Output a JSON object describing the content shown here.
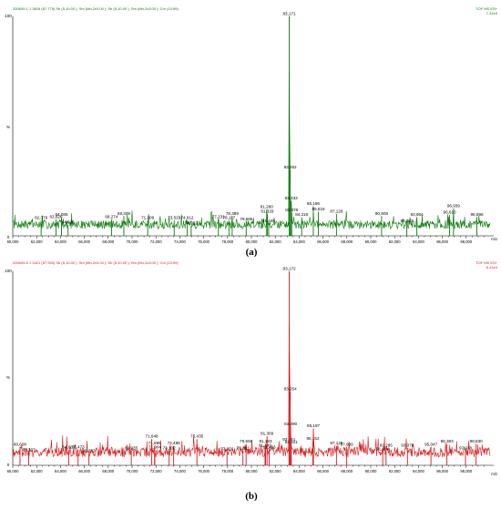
{
  "chart_data": [
    {
      "type": "line",
      "panel_label": "(a)",
      "header_left": "200609-1 1 3616 (67.775) Sb (5,10.00 ); Sm (Mn,2x3.00 ); Sb (5,10.00 ); Sm (Mn,2x3.00 ); Cm (13:99)",
      "header_right": "TOF MS ES+",
      "intensity": "7.31e3",
      "xlabel": "m/z",
      "ylabel": "%",
      "xlim": [
        60000,
        100000
      ],
      "ylim": [
        0,
        100
      ],
      "y_ticks": [
        "100",
        "%",
        "0"
      ],
      "x_ticks": [
        "60,000",
        "62,000",
        "64,000",
        "66,000",
        "68,000",
        "70,000",
        "72,000",
        "74,000",
        "76,000",
        "78,000",
        "80,000",
        "82,000",
        "84,000",
        "86,000",
        "88,000",
        "90,000",
        "92,000",
        "94,000",
        "96,000",
        "98,000"
      ],
      "color": "#0a7a0a",
      "peaks": [
        {
          "x": 62379,
          "y": 7,
          "label": "62,379"
        },
        {
          "x": 63626,
          "y": 7.5,
          "label": "63,626"
        },
        {
          "x": 64085,
          "y": 8.5,
          "label": "64,085"
        },
        {
          "x": 64636,
          "y": 5,
          "label": "64,636"
        },
        {
          "x": 68274,
          "y": 7.5,
          "label": "68,274"
        },
        {
          "x": 69309,
          "y": 9,
          "label": "69,309"
        },
        {
          "x": 71309,
          "y": 7,
          "label": "71,309"
        },
        {
          "x": 73529,
          "y": 7,
          "label": "73,529"
        },
        {
          "x": 74612,
          "y": 7,
          "label": "74,612"
        },
        {
          "x": 74952,
          "y": 4.5,
          "label": "74,952"
        },
        {
          "x": 77231,
          "y": 7.5,
          "label": "77,231"
        },
        {
          "x": 78117,
          "y": 7,
          "label": "78,117"
        },
        {
          "x": 78389,
          "y": 9,
          "label": "78,389"
        },
        {
          "x": 79565,
          "y": 6.5,
          "label": "79,565"
        },
        {
          "x": 81280,
          "y": 12,
          "label": "81,280"
        },
        {
          "x": 81329,
          "y": 10,
          "label": "81,329"
        },
        {
          "x": 81446,
          "y": 5.5,
          "label": "81,446"
        },
        {
          "x": 83171,
          "y": 100,
          "label": "83,171"
        },
        {
          "x": 83252,
          "y": 30,
          "label": "83,252"
        },
        {
          "x": 83333,
          "y": 16,
          "label": "83,333"
        },
        {
          "x": 83376,
          "y": 10.5,
          "label": "83,376"
        },
        {
          "x": 84216,
          "y": 8.5,
          "label": "84,216"
        },
        {
          "x": 85186,
          "y": 13.5,
          "label": "85,186"
        },
        {
          "x": 85616,
          "y": 11,
          "label": "85,616"
        },
        {
          "x": 87128,
          "y": 10,
          "label": "87,128"
        },
        {
          "x": 90909,
          "y": 9,
          "label": "90,909"
        },
        {
          "x": 93023,
          "y": 5.5,
          "label": "93,023"
        },
        {
          "x": 93864,
          "y": 8.5,
          "label": "93,864"
        },
        {
          "x": 96610,
          "y": 9.5,
          "label": "96,610"
        },
        {
          "x": 96939,
          "y": 12.5,
          "label": "96,939"
        },
        {
          "x": 98896,
          "y": 8.5,
          "label": "98,896"
        }
      ]
    },
    {
      "type": "line",
      "panel_label": "(b)",
      "header_left": "200609-5 1 3421 (57.953) Sb (5,10.00 ); Sm (Mn,2x3.00 ); Sb (5,10.00 ); Sm (Mn,2x3.00 ); Cm (13:99)",
      "header_right": "TOF MS ES+",
      "intensity": "6.41e3",
      "xlabel": "m/z",
      "ylabel": "%",
      "xlim": [
        60000,
        100000
      ],
      "ylim": [
        0,
        100
      ],
      "y_ticks": [
        "100",
        "%",
        "0"
      ],
      "x_ticks": [
        "60,000",
        "62,000",
        "64,000",
        "66,000",
        "68,000",
        "70,000",
        "72,000",
        "74,000",
        "76,000",
        "78,000",
        "80,000",
        "82,000",
        "84,000",
        "86,000",
        "88,000",
        "90,000",
        "92,000",
        "94,000",
        "96,000",
        "98,000"
      ],
      "color": "#d81818",
      "peaks": [
        {
          "x": 60608,
          "y": 9.5,
          "label": "60,608"
        },
        {
          "x": 61337,
          "y": 6.5,
          "label": "61,337"
        },
        {
          "x": 64687,
          "y": 8,
          "label": "64,687"
        },
        {
          "x": 65473,
          "y": 8,
          "label": "65,473"
        },
        {
          "x": 66383,
          "y": 6,
          "label": "66,383"
        },
        {
          "x": 69935,
          "y": 7.5,
          "label": "69,935"
        },
        {
          "x": 71885,
          "y": 10,
          "label": "71,885"
        },
        {
          "x": 71904,
          "y": 8,
          "label": "71,904"
        },
        {
          "x": 71648,
          "y": 13.5,
          "label": "71,648"
        },
        {
          "x": 73486,
          "y": 10,
          "label": "73,486"
        },
        {
          "x": 73102,
          "y": 7.5,
          "label": "73,102"
        },
        {
          "x": 75435,
          "y": 13.5,
          "label": "75,435"
        },
        {
          "x": 77956,
          "y": 7,
          "label": "77,956"
        },
        {
          "x": 79291,
          "y": 7.5,
          "label": "79,291"
        },
        {
          "x": 79556,
          "y": 11,
          "label": "79,556"
        },
        {
          "x": 81309,
          "y": 15,
          "label": "81,309"
        },
        {
          "x": 81143,
          "y": 9,
          "label": "81,143"
        },
        {
          "x": 81183,
          "y": 11,
          "label": "81,183"
        },
        {
          "x": 81493,
          "y": 8,
          "label": "81,493"
        },
        {
          "x": 83151,
          "y": 12,
          "label": "83,151"
        },
        {
          "x": 83172,
          "y": 100,
          "label": "83,172"
        },
        {
          "x": 83254,
          "y": 38,
          "label": "83,254"
        },
        {
          "x": 83290,
          "y": 20,
          "label": "83,290"
        },
        {
          "x": 83341,
          "y": 10.5,
          "label": "83,341"
        },
        {
          "x": 85152,
          "y": 12.5,
          "label": "85,152"
        },
        {
          "x": 85197,
          "y": 19,
          "label": "85,197"
        },
        {
          "x": 87126,
          "y": 10,
          "label": "87,126"
        },
        {
          "x": 87989,
          "y": 9.5,
          "label": "87,989"
        },
        {
          "x": 91004,
          "y": 7,
          "label": "91,004"
        },
        {
          "x": 91285,
          "y": 9,
          "label": "91,285"
        },
        {
          "x": 93076,
          "y": 9,
          "label": "93,076"
        },
        {
          "x": 95047,
          "y": 9.5,
          "label": "95,047"
        },
        {
          "x": 97938,
          "y": 7.5,
          "label": "97,938"
        },
        {
          "x": 96383,
          "y": 11,
          "label": "96,383"
        },
        {
          "x": 98830,
          "y": 11,
          "label": "98,830"
        }
      ]
    }
  ]
}
